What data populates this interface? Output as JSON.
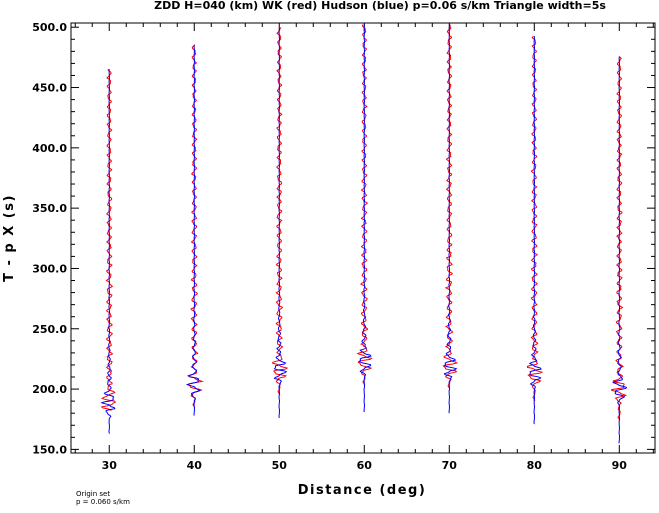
{
  "chart_data": {
    "type": "line",
    "title": "ZDD H=040 (km) WK (red) Hudson (blue) p=0.06 s/km Triangle width=5s",
    "xlabel": "Distance (deg)",
    "ylabel": "T - p X (s)",
    "xlim": [
      25.5,
      94.2
    ],
    "ylim": [
      147.0,
      503.5
    ],
    "x_ticks": [
      30,
      40,
      50,
      60,
      70,
      80,
      90
    ],
    "x_tick_labels": [
      "30",
      "40",
      "50",
      "60",
      "70",
      "80",
      "90"
    ],
    "y_ticks": [
      150,
      200,
      250,
      300,
      350,
      400,
      450,
      500
    ],
    "y_tick_labels": [
      "150.0",
      "200.0",
      "250.0",
      "300.0",
      "350.0",
      "400.0",
      "450.0",
      "500.0"
    ],
    "grid": false,
    "series": [
      {
        "name": "WK",
        "color": "#ff0000"
      },
      {
        "name": "Hudson",
        "color": "#0000ff"
      }
    ],
    "traces": [
      {
        "distance": 30,
        "blue_start": 163,
        "blue_end": 466,
        "red_start": 182,
        "red_end": 466,
        "onset": 198
      },
      {
        "distance": 40,
        "blue_start": 178,
        "blue_end": 486,
        "red_start": 184,
        "red_end": 486,
        "onset": 213
      },
      {
        "distance": 50,
        "blue_start": 176,
        "blue_end": 500,
        "red_start": 195,
        "red_end": 500,
        "onset": 225
      },
      {
        "distance": 60,
        "blue_start": 181,
        "blue_end": 503,
        "red_start": 203,
        "red_end": 503,
        "onset": 232
      },
      {
        "distance": 70,
        "blue_start": 180,
        "blue_end": 503,
        "red_start": 200,
        "red_end": 503,
        "onset": 228
      },
      {
        "distance": 80,
        "blue_start": 171,
        "blue_end": 493,
        "red_start": 190,
        "red_end": 493,
        "onset": 222
      },
      {
        "distance": 90,
        "blue_start": 155,
        "blue_end": 476,
        "red_start": 174,
        "red_end": 476,
        "onset": 209
      }
    ],
    "note_lines": [
      "Origin set",
      "p =  0.060 s/km"
    ]
  }
}
